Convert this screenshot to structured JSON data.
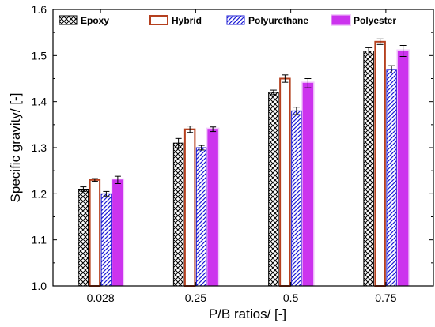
{
  "chart_data": {
    "type": "bar",
    "xlabel": "P/B ratios/ [-]",
    "ylabel": "Specific gravity/ [-]",
    "categories": [
      "0.028",
      "0.25",
      "0.5",
      "0.75"
    ],
    "ylim": [
      1.0,
      1.6
    ],
    "yticks": [
      "1.0",
      "1.1",
      "1.2",
      "1.3",
      "1.4",
      "1.5",
      "1.6"
    ],
    "legend_position": "top",
    "grid": false,
    "series": [
      {
        "name": "Epoxy",
        "values": [
          1.21,
          1.31,
          1.42,
          1.51
        ],
        "errors": [
          0.005,
          0.01,
          0.005,
          0.007
        ],
        "pattern": "crosshatch",
        "color": "#000000"
      },
      {
        "name": "Hybrid",
        "values": [
          1.23,
          1.34,
          1.45,
          1.53
        ],
        "errors": [
          0.003,
          0.007,
          0.008,
          0.006
        ],
        "pattern": "hollow",
        "color": "#b5401f"
      },
      {
        "name": "Polyurethane",
        "values": [
          1.2,
          1.3,
          1.38,
          1.47
        ],
        "errors": [
          0.005,
          0.005,
          0.008,
          0.008
        ],
        "pattern": "diagonal",
        "color": "#1c1cd6"
      },
      {
        "name": "Polyester",
        "values": [
          1.23,
          1.34,
          1.44,
          1.51
        ],
        "errors": [
          0.008,
          0.005,
          0.01,
          0.012
        ],
        "pattern": "solid",
        "color": "#cc33ee"
      }
    ]
  }
}
